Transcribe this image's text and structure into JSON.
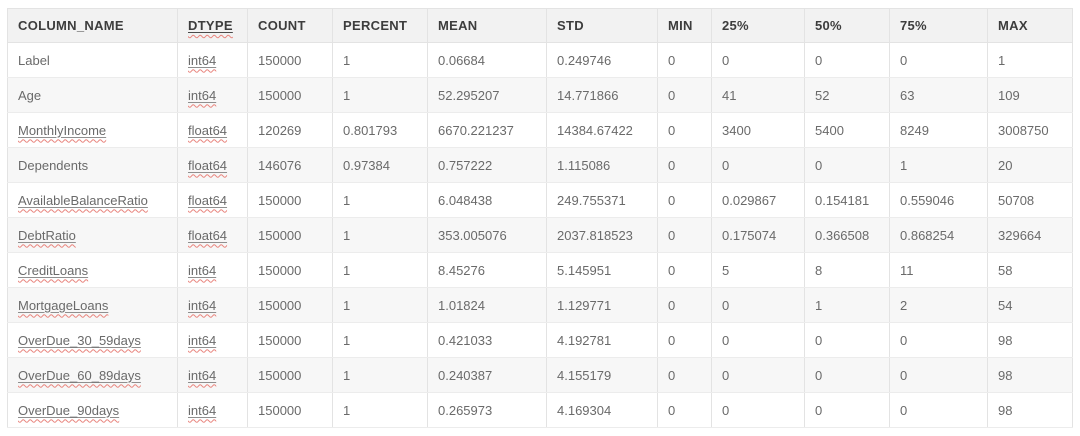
{
  "table": {
    "columns": [
      {
        "key": "column_name",
        "label": "COLUMN_NAME",
        "flagged": false
      },
      {
        "key": "dtype",
        "label": "DTYPE",
        "flagged": true
      },
      {
        "key": "count",
        "label": "COUNT",
        "flagged": false
      },
      {
        "key": "percent",
        "label": "PERCENT",
        "flagged": false
      },
      {
        "key": "mean",
        "label": "MEAN",
        "flagged": false
      },
      {
        "key": "std",
        "label": "STD",
        "flagged": false
      },
      {
        "key": "min",
        "label": "MIN",
        "flagged": false
      },
      {
        "key": "p25",
        "label": "25%",
        "flagged": false
      },
      {
        "key": "p50",
        "label": "50%",
        "flagged": false
      },
      {
        "key": "p75",
        "label": "75%",
        "flagged": false
      },
      {
        "key": "max",
        "label": "MAX",
        "flagged": false
      }
    ],
    "rows": [
      {
        "cells": [
          "Label",
          "int64",
          "150000",
          "1",
          "0.06684",
          "0.249746",
          "0",
          "0",
          "0",
          "0",
          "1"
        ],
        "flagged_cells": [
          1
        ]
      },
      {
        "cells": [
          "Age",
          "int64",
          "150000",
          "1",
          "52.295207",
          "14.771866",
          "0",
          "41",
          "52",
          "63",
          "109"
        ],
        "flagged_cells": [
          1
        ]
      },
      {
        "cells": [
          "MonthlyIncome",
          "float64",
          "120269",
          "0.801793",
          "6670.221237",
          "14384.67422",
          "0",
          "3400",
          "5400",
          "8249",
          "3008750"
        ],
        "flagged_cells": [
          0,
          1
        ]
      },
      {
        "cells": [
          "Dependents",
          "float64",
          "146076",
          "0.97384",
          "0.757222",
          "1.115086",
          "0",
          "0",
          "0",
          "1",
          "20"
        ],
        "flagged_cells": [
          1
        ]
      },
      {
        "cells": [
          "AvailableBalanceRatio",
          "float64",
          "150000",
          "1",
          "6.048438",
          "249.755371",
          "0",
          "0.029867",
          "0.154181",
          "0.559046",
          "50708"
        ],
        "flagged_cells": [
          0,
          1
        ]
      },
      {
        "cells": [
          "DebtRatio",
          "float64",
          "150000",
          "1",
          "353.005076",
          "2037.818523",
          "0",
          "0.175074",
          "0.366508",
          "0.868254",
          "329664"
        ],
        "flagged_cells": [
          0,
          1
        ]
      },
      {
        "cells": [
          "CreditLoans",
          "int64",
          "150000",
          "1",
          "8.45276",
          "5.145951",
          "0",
          "5",
          "8",
          "11",
          "58"
        ],
        "flagged_cells": [
          0,
          1
        ]
      },
      {
        "cells": [
          "MortgageLoans",
          "int64",
          "150000",
          "1",
          "1.01824",
          "1.129771",
          "0",
          "0",
          "1",
          "2",
          "54"
        ],
        "flagged_cells": [
          0,
          1
        ]
      },
      {
        "cells": [
          "OverDue_30_59days",
          "int64",
          "150000",
          "1",
          "0.421033",
          "4.192781",
          "0",
          "0",
          "0",
          "0",
          "98"
        ],
        "flagged_cells": [
          0,
          1
        ]
      },
      {
        "cells": [
          "OverDue_60_89days",
          "int64",
          "150000",
          "1",
          "0.240387",
          "4.155179",
          "0",
          "0",
          "0",
          "0",
          "98"
        ],
        "flagged_cells": [
          0,
          1
        ]
      },
      {
        "cells": [
          "OverDue_90days",
          "int64",
          "150000",
          "1",
          "0.265973",
          "4.169304",
          "0",
          "0",
          "0",
          "0",
          "98"
        ],
        "flagged_cells": [
          0,
          1
        ]
      }
    ]
  },
  "colors": {
    "header_bg": "#f2f2f2",
    "stripe_bg": "#f7f7f7",
    "border": "#e3e3e3",
    "body_text": "#6a6a6a",
    "header_text": "#3d3d3d",
    "spellcheck_wavy": "#e8837c",
    "solid_underline": "#8f8f8f"
  }
}
